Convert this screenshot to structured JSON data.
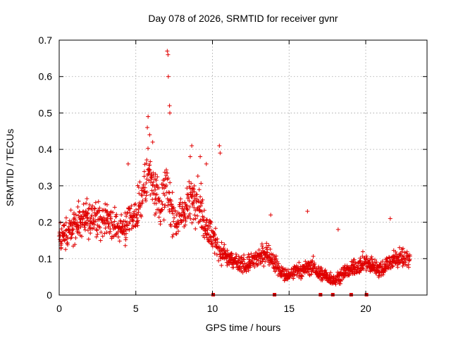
{
  "chart_data": {
    "type": "scatter",
    "title": "Day 078 of 2026, SRMTID for receiver gvnr",
    "xlabel": "GPS time / hours",
    "ylabel": "SRMTID / TECUs",
    "xlim": [
      0,
      24
    ],
    "ylim": [
      0,
      0.7
    ],
    "xticks": [
      0,
      5,
      10,
      15,
      20
    ],
    "xtick_labels": [
      "0",
      "5",
      "10",
      "15",
      "20"
    ],
    "yticks": [
      0,
      0.1,
      0.2,
      0.3,
      0.4,
      0.5,
      0.6,
      0.7
    ],
    "ytick_labels": [
      "0",
      "0.1",
      "0.2",
      "0.3",
      "0.4",
      "0.5",
      "0.6",
      "0.7"
    ],
    "grid": true,
    "marker": "+",
    "color": "#e00000",
    "envelope": {
      "description": "approximate central trend of SRMTID (TECU) by GPS hour",
      "x": [
        0,
        0.5,
        1,
        1.5,
        2,
        2.5,
        3,
        3.5,
        4,
        4.5,
        5,
        5.5,
        5.8,
        6.2,
        6.6,
        7,
        7.3,
        7.6,
        8,
        8.5,
        9,
        9.5,
        10,
        10.5,
        11,
        11.5,
        12,
        12.5,
        13,
        13.5,
        14,
        14.5,
        15,
        15.5,
        16,
        16.5,
        17,
        17.5,
        18,
        18.5,
        19,
        19.5,
        20,
        20.5,
        21,
        21.5,
        22,
        22.5,
        23
      ],
      "y": [
        0.15,
        0.17,
        0.2,
        0.21,
        0.22,
        0.2,
        0.21,
        0.19,
        0.18,
        0.2,
        0.22,
        0.28,
        0.34,
        0.3,
        0.24,
        0.3,
        0.24,
        0.2,
        0.22,
        0.26,
        0.27,
        0.2,
        0.16,
        0.12,
        0.1,
        0.09,
        0.08,
        0.09,
        0.1,
        0.12,
        0.09,
        0.06,
        0.05,
        0.07,
        0.07,
        0.08,
        0.06,
        0.05,
        0.04,
        0.06,
        0.07,
        0.08,
        0.09,
        0.08,
        0.07,
        0.09,
        0.1,
        0.1,
        0.1
      ]
    },
    "peaks": [
      {
        "x": 7.05,
        "y": 0.67
      },
      {
        "x": 7.1,
        "y": 0.66
      },
      {
        "x": 7.12,
        "y": 0.6
      },
      {
        "x": 7.2,
        "y": 0.52
      },
      {
        "x": 7.22,
        "y": 0.5
      },
      {
        "x": 5.8,
        "y": 0.49
      },
      {
        "x": 5.75,
        "y": 0.46
      },
      {
        "x": 5.9,
        "y": 0.44
      },
      {
        "x": 6.1,
        "y": 0.42
      },
      {
        "x": 8.65,
        "y": 0.41
      },
      {
        "x": 8.55,
        "y": 0.38
      },
      {
        "x": 10.45,
        "y": 0.41
      },
      {
        "x": 10.5,
        "y": 0.39
      },
      {
        "x": 9.2,
        "y": 0.38
      },
      {
        "x": 9.6,
        "y": 0.36
      },
      {
        "x": 4.5,
        "y": 0.36
      },
      {
        "x": 13.8,
        "y": 0.22
      },
      {
        "x": 16.2,
        "y": 0.23
      },
      {
        "x": 21.6,
        "y": 0.21
      },
      {
        "x": 18.2,
        "y": 0.18
      }
    ],
    "baseline_marks_x": [
      10.05,
      14.05,
      17.05,
      17.85,
      19.05,
      20.05
    ]
  }
}
